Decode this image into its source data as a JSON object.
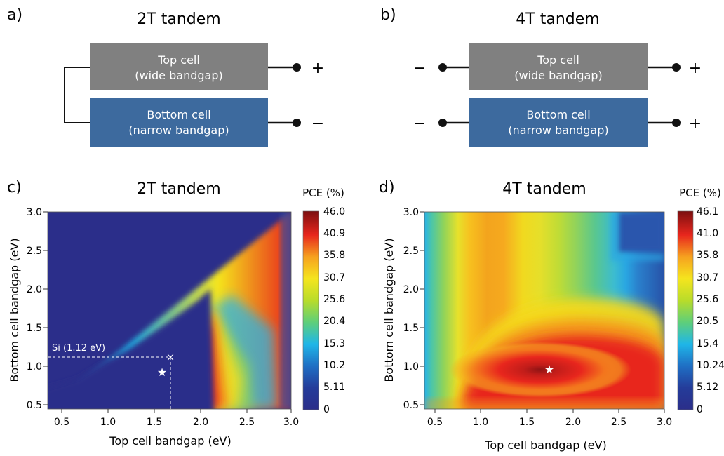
{
  "panel_a": {
    "letter": "a)",
    "title": "2T tandem",
    "top_cell": [
      "Top cell",
      "(wide bandgap)"
    ],
    "bottom_cell": [
      "Bottom cell",
      "(narrow bandgap)"
    ],
    "top_terminal": "+",
    "bottom_terminal": "−"
  },
  "panel_b": {
    "letter": "b)",
    "title": "4T tandem",
    "top_cell": [
      "Top cell",
      "(wide bandgap)"
    ],
    "bottom_cell": [
      "Bottom cell",
      "(narrow bandgap)"
    ],
    "top_left_terminal": "−",
    "top_right_terminal": "+",
    "bottom_left_terminal": "−",
    "bottom_right_terminal": "+"
  },
  "colors": {
    "top_cell_fill": "#808080",
    "bottom_cell_fill": "#3d6a9e",
    "cell_text": "#ffffff",
    "wire": "#111111"
  },
  "chart_data": [
    {
      "type": "heatmap",
      "letter": "c)",
      "title": "2T tandem",
      "xlabel": "Top cell bandgap (eV)",
      "ylabel": "Bottom cell bandgap (eV)",
      "xlim": [
        0.4,
        3.0
      ],
      "ylim": [
        0.4,
        3.0
      ],
      "xticks": [
        "0.5",
        "1.0",
        "1.5",
        "2.0",
        "2.5",
        "3.0"
      ],
      "yticks": [
        "0.5",
        "1.0",
        "1.5",
        "2.0",
        "2.5",
        "3.0"
      ],
      "colorbar_title": "PCE (%)",
      "colorbar_ticks": [
        "46.0",
        "40.9",
        "35.8",
        "30.7",
        "25.6",
        "20.4",
        "15.3",
        "10.2",
        "5.11",
        "0"
      ],
      "colorbar_range": [
        0,
        46.0
      ],
      "max_marker": {
        "symbol": "★",
        "x": 1.6,
        "y": 0.93
      },
      "si_marker": {
        "symbol": "×",
        "label": "Si (1.12 eV)",
        "x": 1.7,
        "y": 1.12
      }
    },
    {
      "type": "heatmap",
      "letter": "d)",
      "title": "4T tandem",
      "xlabel": "Top cell bandgap (eV)",
      "ylabel": "Bottom cell bandgap (eV)",
      "xlim": [
        0.4,
        3.0
      ],
      "ylim": [
        0.4,
        3.0
      ],
      "xticks": [
        "0.5",
        "1.0",
        "1.5",
        "2.0",
        "2.5",
        "3.0"
      ],
      "yticks": [
        "0.5",
        "1.0",
        "1.5",
        "2.0",
        "2.5",
        "3.0"
      ],
      "colorbar_title": "PCE (%)",
      "colorbar_ticks": [
        "46.1",
        "41.0",
        "35.8",
        "30.7",
        "25.6",
        "20.5",
        "15.4",
        "10.24",
        "5.12",
        "0"
      ],
      "colorbar_range": [
        0,
        46.1
      ],
      "max_marker": {
        "symbol": "★",
        "x": 1.75,
        "y": 0.96
      }
    }
  ]
}
